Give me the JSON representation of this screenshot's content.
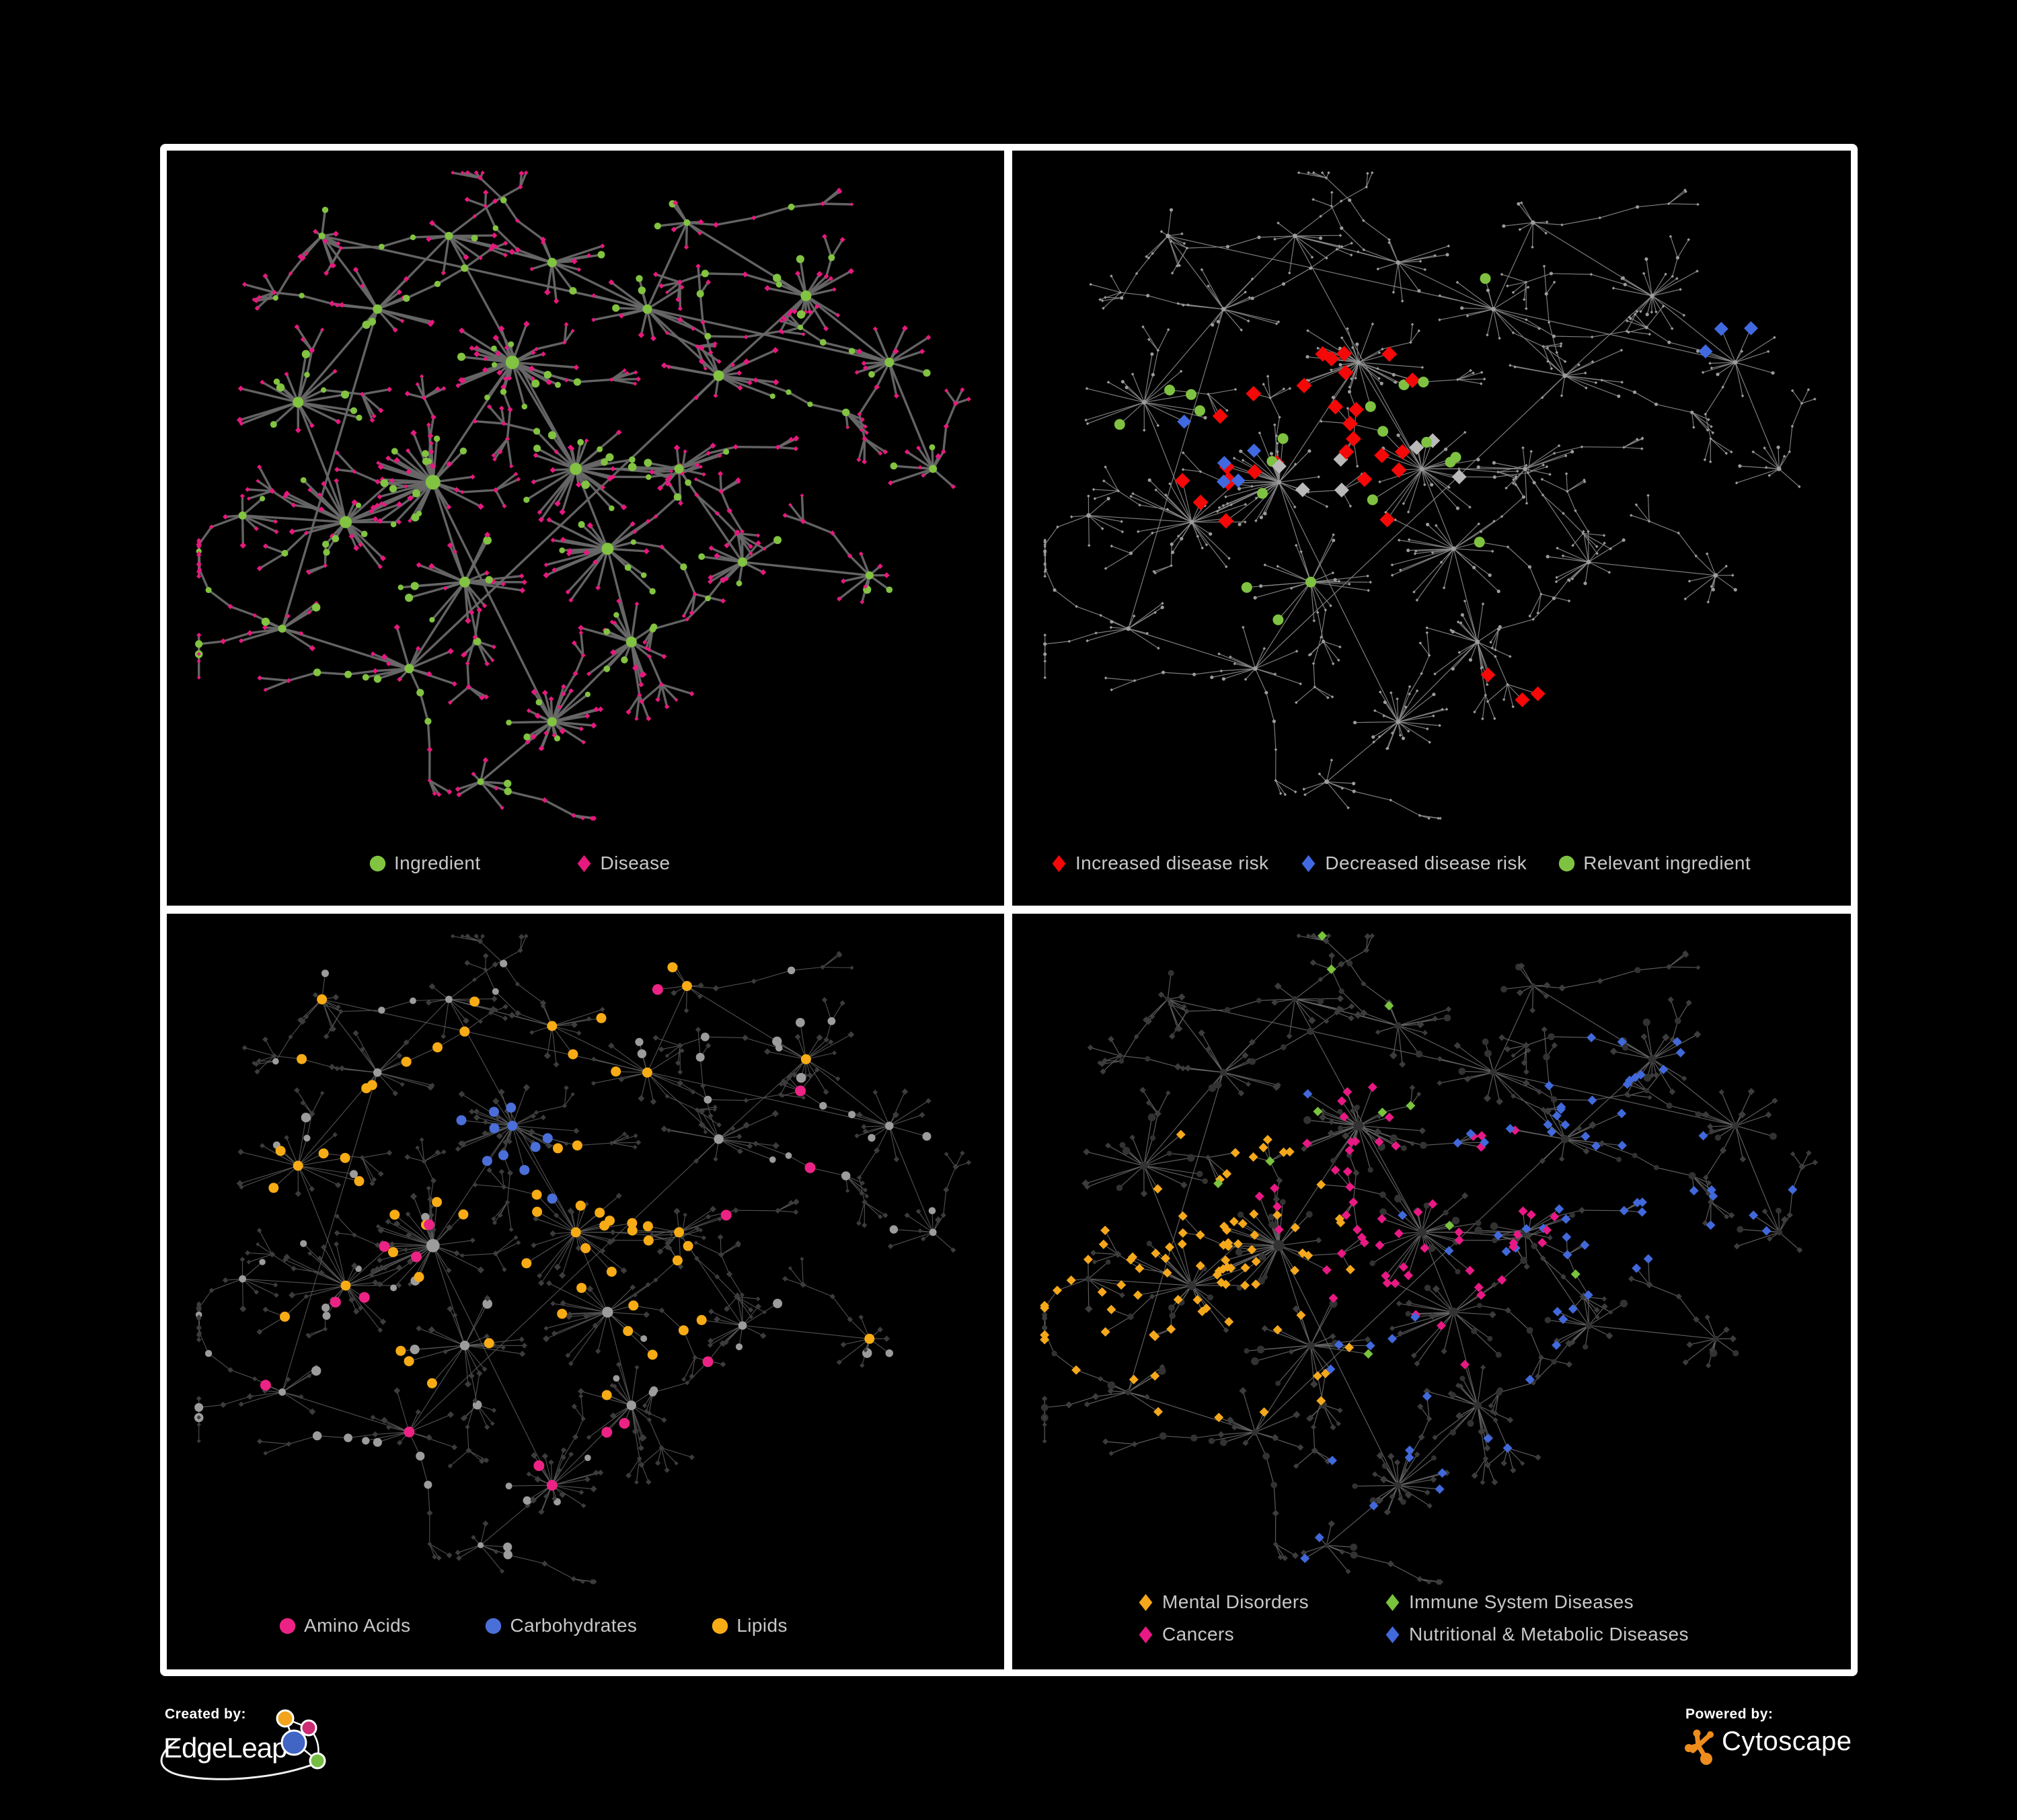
{
  "page": {
    "background": "#000000",
    "frame_color": "#ffffff",
    "legend_text_color": "#c8c8c8"
  },
  "footer": {
    "created_by_label": "Created by:",
    "created_by_brand": "EdgeLeap",
    "powered_by_label": "Powered by:",
    "powered_by_brand": "Cytoscape",
    "edgeleap_logo_colors": {
      "orange": "#F2A41C",
      "magenta": "#CC2A72",
      "blue": "#4165C4",
      "green": "#76BD43"
    },
    "cytoscape_icon_color": "#EE8C1E"
  },
  "chart_data": {
    "type": "network",
    "description": "Four renderings of the same ingredient-disease association network. Circles are ingredients, diamonds are diseases. Each quadrant recolors the identical topology: (1) ingredients vs diseases, (2) disease-risk evidence highlights, (3) ingredient molecule classes, (4) disease classes.",
    "seed": 11,
    "leaf_circle_ratio": 0.22,
    "extra_links": 7,
    "anchors": [
      [
        0.31,
        0.48,
        11,
        38,
        0.075,
        3
      ],
      [
        0.41,
        0.3,
        10,
        34,
        0.065,
        3
      ],
      [
        0.49,
        0.46,
        9,
        26,
        0.075,
        3
      ],
      [
        0.2,
        0.54,
        9,
        24,
        0.07,
        3
      ],
      [
        0.35,
        0.63,
        8,
        20,
        0.065,
        2
      ],
      [
        0.53,
        0.58,
        9,
        22,
        0.075,
        2
      ],
      [
        0.14,
        0.36,
        8,
        16,
        0.065,
        2
      ],
      [
        0.24,
        0.22,
        7,
        13,
        0.06,
        2
      ],
      [
        0.33,
        0.11,
        6,
        9,
        0.05,
        2
      ],
      [
        0.46,
        0.15,
        7,
        11,
        0.055,
        2
      ],
      [
        0.58,
        0.22,
        7,
        11,
        0.055,
        2
      ],
      [
        0.67,
        0.32,
        8,
        14,
        0.065,
        2
      ],
      [
        0.78,
        0.2,
        8,
        16,
        0.06,
        2
      ],
      [
        0.885,
        0.3,
        7,
        12,
        0.05,
        2
      ],
      [
        0.94,
        0.46,
        6,
        9,
        0.045,
        1
      ],
      [
        0.62,
        0.46,
        7,
        11,
        0.055,
        2
      ],
      [
        0.7,
        0.6,
        7,
        12,
        0.055,
        2
      ],
      [
        0.56,
        0.72,
        8,
        18,
        0.06,
        2
      ],
      [
        0.46,
        0.84,
        7,
        26,
        0.05,
        1
      ],
      [
        0.28,
        0.76,
        7,
        11,
        0.055,
        2
      ],
      [
        0.12,
        0.7,
        6,
        9,
        0.05,
        2
      ],
      [
        0.07,
        0.53,
        6,
        7,
        0.045,
        1
      ],
      [
        0.17,
        0.11,
        5,
        7,
        0.045,
        1
      ],
      [
        0.63,
        0.09,
        5,
        7,
        0.045,
        1
      ],
      [
        0.86,
        0.62,
        6,
        9,
        0.05,
        1
      ],
      [
        0.37,
        0.93,
        5,
        7,
        0.04,
        1
      ]
    ],
    "panels": [
      {
        "name": "ingredient-disease",
        "legend": {
          "layout": "row",
          "items": [
            {
              "label": "Ingredient",
              "shape": "circle",
              "color": "#82C341"
            },
            {
              "label": "Disease",
              "shape": "diamond",
              "color": "#E6197E"
            }
          ]
        },
        "style": {
          "edge_color": "#686868",
          "edge_width": 3.4,
          "edge_opacity": 0.95,
          "circle_color": "#82C341",
          "diamond_color": "#E6197E",
          "circle_scale": 0.9,
          "diamond_scale": 0.75,
          "hub_scale": 1.0,
          "highlights": []
        }
      },
      {
        "name": "disease-risk",
        "legend": {
          "layout": "row",
          "items": [
            {
              "label": "Increased disease risk",
              "shape": "diamond",
              "color": "#F40808"
            },
            {
              "label": "Decreased disease risk",
              "shape": "diamond",
              "color": "#4169E0"
            },
            {
              "label": "Relevant ingredient",
              "shape": "circle",
              "color": "#7FC241"
            }
          ]
        },
        "style": {
          "edge_color": "#8A8A8A",
          "edge_width": 1.2,
          "edge_opacity": 0.9,
          "circle_color": "#9C9C9C",
          "diamond_color": "#9C9C9C",
          "circle_scale": 1,
          "diamond_scale": 1,
          "hub_scale": 1,
          "uniform_size": {
            "hub": 3.4,
            "circle": 2.6,
            "diamond": 2.3
          },
          "highlights": [
            {
              "shape": "diamond",
              "color": "#B9B9B9",
              "count": 7,
              "x": 0.42,
              "y": 0.44,
              "jitter": 0.5,
              "size": 11
            },
            {
              "shape": "diamond",
              "color": "#F40808",
              "count": 27,
              "x": 0.36,
              "y": 0.4,
              "jitter": 0.45,
              "size": 11.5
            },
            {
              "shape": "diamond",
              "color": "#F40808",
              "count": 3,
              "x": 0.6,
              "y": 0.8,
              "jitter": 0.1,
              "size": 11
            },
            {
              "shape": "diamond",
              "color": "#4169E0",
              "count": 5,
              "x": 0.23,
              "y": 0.45,
              "jitter": 0.18,
              "size": 10.5
            },
            {
              "shape": "diamond",
              "color": "#4169E0",
              "count": 3,
              "x": 0.88,
              "y": 0.26,
              "jitter": 0.08,
              "size": 10.5
            },
            {
              "shape": "circle",
              "color": "#7FC241",
              "count": 20,
              "x": 0.38,
              "y": 0.42,
              "jitter": 0.8,
              "size": 8
            }
          ]
        }
      },
      {
        "name": "ingredient-molecule-classes",
        "legend": {
          "layout": "row",
          "items": [
            {
              "label": "Amino Acids",
              "shape": "circle",
              "color": "#EC2384"
            },
            {
              "label": "Carbohydrates",
              "shape": "circle",
              "color": "#4B6FD8"
            },
            {
              "label": "Lipids",
              "shape": "circle",
              "color": "#F7AB15"
            }
          ]
        },
        "style": {
          "edge_color": "#5A5A5A",
          "edge_width": 1.1,
          "edge_opacity": 0.9,
          "circle_color": "#9C9C9C",
          "diamond_color": "#3C3C3C",
          "circle_scale": 1.05,
          "diamond_scale": 0.8,
          "hub_scale": 0.9,
          "highlights": [
            {
              "shape": "circle",
              "color": "#4B6FD8",
              "count": 11,
              "x": 0.4,
              "y": 0.29,
              "jitter": 0.12,
              "size": 7.5
            },
            {
              "shape": "circle",
              "color": "#F7AB15",
              "count": 48,
              "x": 0.42,
              "y": 0.32,
              "jitter": 0.3,
              "size": 7.5
            },
            {
              "shape": "circle",
              "color": "#F7AB15",
              "count": 14,
              "x": 0.5,
              "y": 0.55,
              "jitter": 1.6,
              "size": 7.5
            },
            {
              "shape": "circle",
              "color": "#EC2384",
              "count": 16,
              "x": 0.45,
              "y": 0.55,
              "jitter": 2.2,
              "size": 8
            }
          ]
        }
      },
      {
        "name": "disease-classes",
        "legend": {
          "layout": "grid",
          "items": [
            {
              "label": "Mental Disorders",
              "shape": "diamond",
              "color": "#F5A81C"
            },
            {
              "label": "Immune System Diseases",
              "shape": "diamond",
              "color": "#79C33D"
            },
            {
              "label": "Cancers",
              "shape": "diamond",
              "color": "#E81984"
            },
            {
              "label": "Nutritional & Metabolic Diseases",
              "shape": "diamond",
              "color": "#4169DB"
            }
          ]
        },
        "style": {
          "edge_color": "#666666",
          "edge_width": 1.2,
          "edge_opacity": 0.9,
          "circle_color": "#323232",
          "diamond_color": "#3C3C3C",
          "circle_scale": 0.85,
          "diamond_scale": 0.9,
          "hub_scale": 0.75,
          "highlights": [
            {
              "shape": "diamond",
              "color": "#F5A81C",
              "count": 88,
              "x": 0.2,
              "y": 0.52,
              "jitter": 0.22,
              "size": 7
            },
            {
              "shape": "diamond",
              "color": "#E81984",
              "count": 58,
              "x": 0.46,
              "y": 0.44,
              "jitter": 0.26,
              "size": 7
            },
            {
              "shape": "diamond",
              "color": "#4169DB",
              "count": 48,
              "x": 0.72,
              "y": 0.36,
              "jitter": 0.35,
              "size": 7
            },
            {
              "shape": "diamond",
              "color": "#4169DB",
              "count": 26,
              "x": 0.5,
              "y": 0.6,
              "jitter": 2.0,
              "size": 7
            },
            {
              "shape": "diamond",
              "color": "#79C33D",
              "count": 11,
              "x": 0.4,
              "y": 0.35,
              "jitter": 2.5,
              "size": 7
            }
          ]
        }
      }
    ]
  }
}
